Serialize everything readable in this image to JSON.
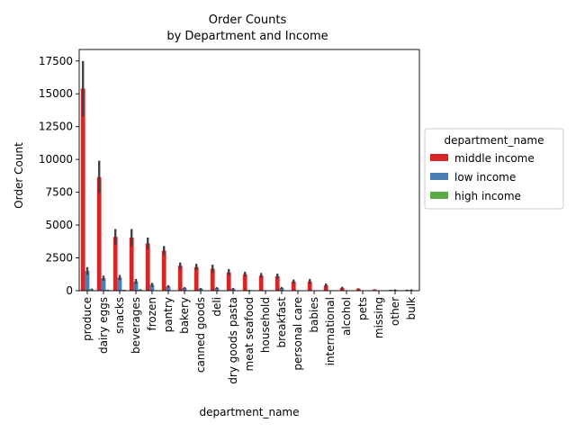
{
  "chart_data": {
    "type": "bar",
    "title_line1": "Order Counts",
    "title_line2": "by Department and Income",
    "xlabel": "department_name",
    "ylabel": "Order Count",
    "ylim": [
      0,
      18375
    ],
    "yticks": [
      0,
      2500,
      5000,
      7500,
      10000,
      12500,
      15000,
      17500
    ],
    "ytick_labels": [
      "0",
      "2500",
      "5000",
      "7500",
      "10000",
      "12500",
      "15000",
      "17500"
    ],
    "categories": [
      "produce",
      "dairy eggs",
      "snacks",
      "beverages",
      "frozen",
      "pantry",
      "bakery",
      "canned goods",
      "deli",
      "dry goods pasta",
      "meat seafood",
      "household",
      "breakfast",
      "personal care",
      "babies",
      "international",
      "alcohol",
      "pets",
      "missing",
      "other",
      "bulk"
    ],
    "series": [
      {
        "name": "middle income",
        "color": "#d62728",
        "values": [
          15400,
          8650,
          4100,
          4050,
          3600,
          3050,
          1900,
          1800,
          1680,
          1400,
          1250,
          1150,
          1100,
          700,
          700,
          400,
          200,
          150,
          90,
          50,
          50
        ],
        "err": [
          2100,
          1250,
          600,
          650,
          450,
          350,
          250,
          250,
          300,
          250,
          200,
          200,
          200,
          150,
          200,
          150,
          100,
          30,
          20,
          20,
          30
        ]
      },
      {
        "name": "low income",
        "color": "#4a7fb5",
        "values": [
          1500,
          950,
          1000,
          700,
          450,
          320,
          200,
          150,
          200,
          150,
          40,
          30,
          200,
          30,
          20,
          10,
          20,
          10,
          10,
          60,
          60
        ],
        "err": [
          300,
          200,
          200,
          200,
          150,
          100,
          80,
          60,
          70,
          60,
          20,
          10,
          80,
          10,
          10,
          5,
          10,
          5,
          5,
          40,
          40
        ]
      },
      {
        "name": "high income",
        "color": "#5aaa46",
        "values": [
          120,
          60,
          50,
          80,
          30,
          20,
          20,
          15,
          10,
          10,
          10,
          5,
          5,
          5,
          5,
          5,
          5,
          5,
          5,
          5,
          5
        ],
        "err": [
          40,
          20,
          20,
          30,
          10,
          10,
          10,
          5,
          5,
          5,
          5,
          5,
          5,
          5,
          5,
          5,
          5,
          5,
          5,
          5,
          5
        ]
      }
    ],
    "legend": {
      "title": "department_name",
      "placement": "right",
      "entries": [
        "middle income",
        "low income",
        "high income"
      ]
    }
  }
}
